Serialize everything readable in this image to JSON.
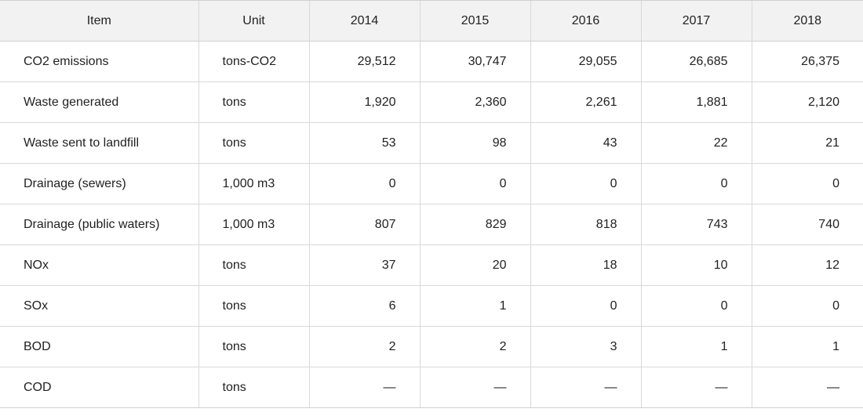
{
  "table": {
    "headers": [
      "Item",
      "Unit",
      "2014",
      "2015",
      "2016",
      "2017",
      "2018"
    ],
    "rows": [
      {
        "item": "CO2 emissions",
        "unit": "tons-CO2",
        "values": [
          "29,512",
          "30,747",
          "29,055",
          "26,685",
          "26,375"
        ]
      },
      {
        "item": "Waste generated",
        "unit": "tons",
        "values": [
          "1,920",
          "2,360",
          "2,261",
          "1,881",
          "2,120"
        ]
      },
      {
        "item": "Waste sent to landfill",
        "unit": "tons",
        "values": [
          "53",
          "98",
          "43",
          "22",
          "21"
        ]
      },
      {
        "item": "Drainage (sewers)",
        "unit": "1,000 m3",
        "values": [
          "0",
          "0",
          "0",
          "0",
          "0"
        ]
      },
      {
        "item": "Drainage (public waters)",
        "unit": "1,000 m3",
        "values": [
          "807",
          "829",
          "818",
          "743",
          "740"
        ]
      },
      {
        "item": "NOx",
        "unit": "tons",
        "values": [
          "37",
          "20",
          "18",
          "10",
          "12"
        ]
      },
      {
        "item": "SOx",
        "unit": "tons",
        "values": [
          "6",
          "1",
          "0",
          "0",
          "0"
        ]
      },
      {
        "item": "BOD",
        "unit": "tons",
        "values": [
          "2",
          "2",
          "3",
          "1",
          "1"
        ]
      },
      {
        "item": "COD",
        "unit": "tons",
        "values": [
          "—",
          "—",
          "—",
          "—",
          "—"
        ]
      }
    ]
  }
}
